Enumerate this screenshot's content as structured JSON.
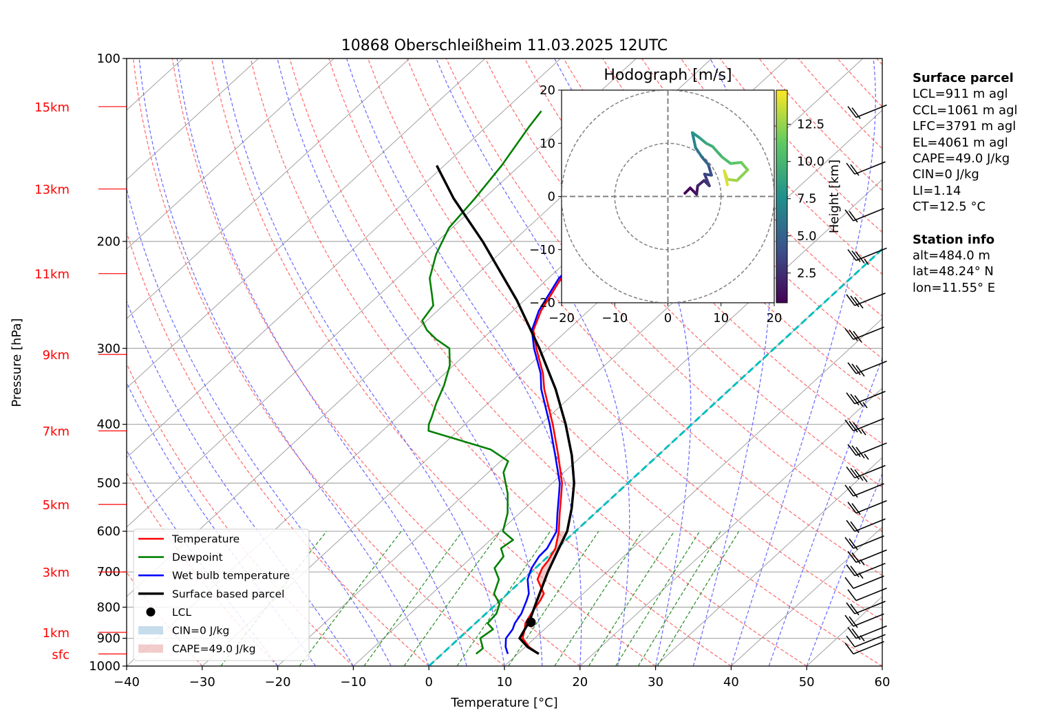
{
  "chart_data": {
    "type": "skew-t log-p sounding",
    "title": "10868 Oberschleißheim 11.03.2025 12UTC",
    "xlabel": "Temperature [°C]",
    "ylabel": "Pressure [hPa]",
    "xlim": [
      -40,
      60
    ],
    "ylim_hpa": [
      1000,
      100
    ],
    "y_scale": "log",
    "skew": "isotherms slanted up-right",
    "grid": true,
    "xticks": [
      -40,
      -30,
      -20,
      -10,
      0,
      10,
      20,
      30,
      40,
      50,
      60
    ],
    "yticks": [
      100,
      200,
      300,
      400,
      500,
      600,
      700,
      800,
      900,
      1000
    ],
    "height_labels": [
      {
        "label": "sfc",
        "p": 955
      },
      {
        "label": "1km",
        "p": 880
      },
      {
        "label": "3km",
        "p": 700
      },
      {
        "label": "5km",
        "p": 542
      },
      {
        "label": "7km",
        "p": 410
      },
      {
        "label": "9km",
        "p": 307
      },
      {
        "label": "11km",
        "p": 226
      },
      {
        "label": "13km",
        "p": 164
      },
      {
        "label": "15km",
        "p": 120
      }
    ],
    "series": [
      {
        "name": "Temperature",
        "color": "#ff0000",
        "points": [
          [
            955,
            12.8
          ],
          [
            930,
            10.5
          ],
          [
            900,
            8.4
          ],
          [
            870,
            7.4
          ],
          [
            850,
            6.6
          ],
          [
            820,
            6.0
          ],
          [
            780,
            5.3
          ],
          [
            760,
            4.8
          ],
          [
            720,
            1.9
          ],
          [
            690,
            0.9
          ],
          [
            670,
            0.6
          ],
          [
            640,
            -0.2
          ],
          [
            600,
            -2.2
          ],
          [
            560,
            -4.7
          ],
          [
            520,
            -7.3
          ],
          [
            500,
            -8.7
          ],
          [
            450,
            -13.2
          ],
          [
            400,
            -18.4
          ],
          [
            350,
            -24.6
          ],
          [
            330,
            -27.0
          ],
          [
            300,
            -31.5
          ],
          [
            280,
            -34.5
          ],
          [
            260,
            -36.3
          ],
          [
            230,
            -38.3
          ],
          [
            210,
            -38.6
          ],
          [
            190,
            -39.7
          ],
          [
            170,
            -40.6
          ],
          [
            150,
            -40.5
          ],
          [
            130,
            -41.8
          ],
          [
            118,
            -41.5
          ]
        ]
      },
      {
        "name": "Dewpoint",
        "color": "#008000",
        "points": [
          [
            955,
            4.5
          ],
          [
            935,
            4.6
          ],
          [
            900,
            2.8
          ],
          [
            870,
            3.2
          ],
          [
            850,
            1.6
          ],
          [
            820,
            1.4
          ],
          [
            790,
            0.4
          ],
          [
            760,
            -1.8
          ],
          [
            720,
            -3.2
          ],
          [
            690,
            -5.4
          ],
          [
            660,
            -5.9
          ],
          [
            640,
            -7.4
          ],
          [
            620,
            -7.0
          ],
          [
            600,
            -9.6
          ],
          [
            560,
            -11.6
          ],
          [
            520,
            -14.4
          ],
          [
            480,
            -18.0
          ],
          [
            460,
            -19.0
          ],
          [
            440,
            -23.0
          ],
          [
            410,
            -33.9
          ],
          [
            400,
            -34.8
          ],
          [
            390,
            -35.4
          ],
          [
            370,
            -36.8
          ],
          [
            345,
            -38.4
          ],
          [
            320,
            -40.5
          ],
          [
            300,
            -43.0
          ],
          [
            290,
            -46.0
          ],
          [
            280,
            -48.6
          ],
          [
            270,
            -50.6
          ],
          [
            255,
            -51.3
          ],
          [
            245,
            -53.0
          ],
          [
            230,
            -55.7
          ],
          [
            210,
            -58.3
          ],
          [
            190,
            -60.4
          ],
          [
            170,
            -61.2
          ],
          [
            150,
            -62.4
          ],
          [
            130,
            -64.3
          ],
          [
            122,
            -65.0
          ]
        ]
      },
      {
        "name": "Wet bulb temperature",
        "color": "#0000ff",
        "points": [
          [
            955,
            8.7
          ],
          [
            930,
            7.4
          ],
          [
            900,
            6.2
          ],
          [
            870,
            5.8
          ],
          [
            850,
            5.2
          ],
          [
            820,
            4.7
          ],
          [
            780,
            3.5
          ],
          [
            760,
            2.8
          ],
          [
            720,
            0.6
          ],
          [
            690,
            -0.5
          ],
          [
            660,
            -1.2
          ],
          [
            640,
            -1.3
          ],
          [
            600,
            -2.5
          ],
          [
            560,
            -5.0
          ],
          [
            520,
            -7.6
          ],
          [
            500,
            -9.0
          ],
          [
            450,
            -13.6
          ],
          [
            400,
            -18.8
          ],
          [
            350,
            -25.0
          ],
          [
            330,
            -27.3
          ],
          [
            300,
            -31.8
          ],
          [
            280,
            -34.7
          ],
          [
            260,
            -36.6
          ],
          [
            230,
            -38.6
          ],
          [
            210,
            -38.9
          ],
          [
            190,
            -40.0
          ],
          [
            170,
            -40.9
          ],
          [
            150,
            -40.8
          ],
          [
            130,
            -42.1
          ],
          [
            118,
            -41.8
          ]
        ]
      },
      {
        "name": "Surface based parcel",
        "color": "#000000",
        "points": [
          [
            955,
            12.8
          ],
          [
            930,
            10.3
          ],
          [
            900,
            8.0
          ],
          [
            870,
            7.4
          ],
          [
            845,
            6.9
          ],
          [
            800,
            5.5
          ],
          [
            750,
            3.9
          ],
          [
            700,
            2.2
          ],
          [
            650,
            0.6
          ],
          [
            600,
            -1.1
          ],
          [
            550,
            -3.8
          ],
          [
            500,
            -7.1
          ],
          [
            450,
            -11.4
          ],
          [
            400,
            -16.7
          ],
          [
            350,
            -23.1
          ],
          [
            300,
            -31.1
          ],
          [
            250,
            -41.0
          ],
          [
            200,
            -54.0
          ],
          [
            170,
            -64.0
          ],
          [
            150,
            -71.0
          ]
        ]
      }
    ],
    "lcl": {
      "label": "LCL",
      "p": 847,
      "t": 7.2
    },
    "cin": {
      "label": "CIN=0 J/kg",
      "color": "#1f77b4"
    },
    "cape": {
      "label": "CAPE=49.0 J/kg",
      "color": "#e8a0a0"
    },
    "freezing_level_line": {
      "color": "#00bfbf"
    },
    "wind_barbs": [
      {
        "p": 955,
        "speed_kt": 10
      },
      {
        "p": 930,
        "speed_kt": 10
      },
      {
        "p": 900,
        "speed_kt": 15
      },
      {
        "p": 860,
        "speed_kt": 20
      },
      {
        "p": 820,
        "speed_kt": 20
      },
      {
        "p": 780,
        "speed_kt": 10
      },
      {
        "p": 745,
        "speed_kt": 10
      },
      {
        "p": 710,
        "speed_kt": 15
      },
      {
        "p": 675,
        "speed_kt": 15
      },
      {
        "p": 640,
        "speed_kt": 20
      },
      {
        "p": 600,
        "speed_kt": 20
      },
      {
        "p": 560,
        "speed_kt": 20
      },
      {
        "p": 525,
        "speed_kt": 20
      },
      {
        "p": 490,
        "speed_kt": 25
      },
      {
        "p": 450,
        "speed_kt": 25
      },
      {
        "p": 410,
        "speed_kt": 25
      },
      {
        "p": 370,
        "speed_kt": 25
      },
      {
        "p": 330,
        "speed_kt": 30
      },
      {
        "p": 290,
        "speed_kt": 30
      },
      {
        "p": 255,
        "speed_kt": 30
      },
      {
        "p": 215,
        "speed_kt": 25
      },
      {
        "p": 185,
        "speed_kt": 20
      },
      {
        "p": 155,
        "speed_kt": 20
      },
      {
        "p": 125,
        "speed_kt": 20
      }
    ],
    "hodograph": {
      "title": "Hodograph [m/s]",
      "xlim": [
        -20,
        20
      ],
      "ylim": [
        -20,
        20
      ],
      "ticks": [
        -20,
        -10,
        0,
        10,
        20
      ],
      "rings": [
        10,
        20
      ],
      "colorbar": {
        "label": "Height [km]",
        "ticks": [
          2.5,
          5.0,
          7.5,
          10.0,
          12.5
        ],
        "range": [
          0.5,
          14.8
        ],
        "colormap": "viridis"
      },
      "points": [
        [
          3.2,
          0.6,
          0.5
        ],
        [
          4.2,
          1.6,
          1.0
        ],
        [
          5.4,
          0.4,
          1.5
        ],
        [
          5.6,
          2.0,
          2.0
        ],
        [
          6.8,
          3.0,
          2.5
        ],
        [
          7.8,
          2.0,
          3.0
        ],
        [
          6.9,
          4.2,
          3.5
        ],
        [
          8.2,
          4.0,
          4.0
        ],
        [
          7.6,
          6.0,
          5.0
        ],
        [
          6.4,
          7.4,
          6.0
        ],
        [
          5.2,
          9.2,
          7.0
        ],
        [
          4.6,
          12.0,
          8.0
        ],
        [
          6.0,
          11.0,
          8.6
        ],
        [
          7.2,
          10.0,
          9.2
        ],
        [
          8.4,
          9.4,
          9.8
        ],
        [
          10.2,
          7.4,
          10.4
        ],
        [
          11.8,
          6.2,
          11.0
        ],
        [
          13.8,
          6.4,
          11.6
        ],
        [
          15.0,
          5.0,
          12.2
        ],
        [
          13.0,
          3.0,
          12.8
        ],
        [
          11.2,
          3.2,
          13.4
        ],
        [
          10.6,
          4.8,
          14.0
        ],
        [
          11.2,
          2.2,
          14.6
        ]
      ]
    }
  },
  "info": {
    "surface_title": "Surface parcel",
    "surface_lines": [
      "LCL=911 m agl",
      "CCL=1061 m agl",
      "LFC=3791 m agl",
      "EL=4061 m agl",
      "CAPE=49.0 J/kg",
      "CIN=0 J/kg",
      "LI=1.14",
      "CT=12.5 °C"
    ],
    "station_title": "Station info",
    "station_lines": [
      "alt=484.0 m",
      "lat=48.24° N",
      "lon=11.55° E"
    ]
  },
  "colors": {
    "dry_adiabat": "#ff6666",
    "moist_adiabat": "#6666ff",
    "mixing_ratio": "#228b22",
    "isotherm": "#a0a0a0",
    "height_label": "#ff0000"
  }
}
